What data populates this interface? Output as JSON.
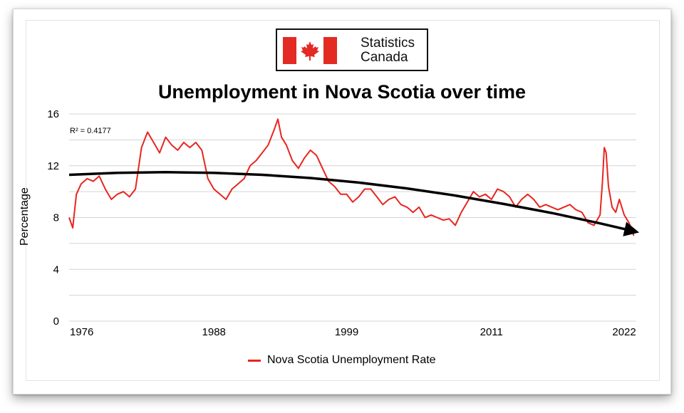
{
  "logo": {
    "line1": "Statistics",
    "line2": "Canada",
    "flag_color": "#e32b24"
  },
  "chart_data": {
    "type": "line",
    "title": "Unemployment in Nova Scotia over time",
    "xlabel": "",
    "ylabel": "Percentage",
    "xlim": [
      1976,
      2023
    ],
    "ylim": [
      0,
      16
    ],
    "y_ticks": [
      0,
      4,
      8,
      12,
      16
    ],
    "x_ticks": [
      "1976",
      "1988",
      "1999",
      "2011",
      "2022"
    ],
    "grid": true,
    "legend_position": "bottom",
    "series": [
      {
        "name": "Nova Scotia Unemployment Rate",
        "color": "#e8251e",
        "x": [
          1976.0,
          1976.3,
          1976.6,
          1977.0,
          1977.5,
          1978.0,
          1978.5,
          1979.0,
          1979.5,
          1980.0,
          1980.5,
          1981.0,
          1981.5,
          1982.0,
          1982.5,
          1983.0,
          1983.5,
          1984.0,
          1984.5,
          1985.0,
          1985.5,
          1986.0,
          1986.5,
          1987.0,
          1987.5,
          1988.0,
          1988.5,
          1989.0,
          1989.5,
          1990.0,
          1990.5,
          1991.0,
          1991.5,
          1992.0,
          1992.5,
          1993.0,
          1993.3,
          1993.6,
          1994.0,
          1994.5,
          1995.0,
          1995.5,
          1996.0,
          1996.5,
          1997.0,
          1997.5,
          1998.0,
          1998.5,
          1999.0,
          1999.5,
          2000.0,
          2000.5,
          2001.0,
          2001.5,
          2002.0,
          2002.5,
          2003.0,
          2003.5,
          2004.0,
          2004.5,
          2005.0,
          2005.5,
          2006.0,
          2006.5,
          2007.0,
          2007.5,
          2008.0,
          2008.5,
          2009.0,
          2009.5,
          2010.0,
          2010.5,
          2011.0,
          2011.5,
          2012.0,
          2012.5,
          2013.0,
          2013.5,
          2014.0,
          2014.5,
          2015.0,
          2015.5,
          2016.0,
          2016.5,
          2017.0,
          2017.5,
          2018.0,
          2018.5,
          2019.0,
          2019.5,
          2020.0,
          2020.2,
          2020.35,
          2020.5,
          2020.7,
          2021.0,
          2021.3,
          2021.6,
          2022.0,
          2022.4,
          2022.8
        ],
        "values": [
          8.0,
          7.2,
          9.8,
          10.6,
          11.0,
          10.8,
          11.2,
          10.2,
          9.4,
          9.8,
          10.0,
          9.6,
          10.2,
          13.4,
          14.6,
          13.8,
          13.0,
          14.2,
          13.6,
          13.2,
          13.8,
          13.4,
          13.8,
          13.2,
          11.0,
          10.2,
          9.8,
          9.4,
          10.2,
          10.6,
          11.0,
          12.0,
          12.4,
          13.0,
          13.6,
          14.8,
          15.6,
          14.2,
          13.6,
          12.4,
          11.8,
          12.6,
          13.2,
          12.8,
          11.8,
          10.8,
          10.4,
          9.8,
          9.8,
          9.2,
          9.6,
          10.2,
          10.2,
          9.6,
          9.0,
          9.4,
          9.6,
          9.0,
          8.8,
          8.4,
          8.8,
          8.0,
          8.2,
          8.0,
          7.8,
          7.9,
          7.4,
          8.4,
          9.2,
          10.0,
          9.6,
          9.8,
          9.4,
          10.2,
          10.0,
          9.6,
          8.8,
          9.4,
          9.8,
          9.4,
          8.8,
          9.0,
          8.8,
          8.6,
          8.8,
          9.0,
          8.6,
          8.4,
          7.6,
          7.4,
          8.2,
          10.8,
          13.4,
          13.0,
          10.4,
          8.8,
          8.4,
          9.4,
          8.2,
          7.6,
          6.6
        ]
      }
    ],
    "trendline": {
      "label": "R² = 0.4177",
      "x": [
        1976,
        1980,
        1984,
        1988,
        1992,
        1996,
        2000,
        2004,
        2008,
        2012,
        2016,
        2020,
        2023
      ],
      "values": [
        11.3,
        11.45,
        11.5,
        11.45,
        11.3,
        11.05,
        10.7,
        10.25,
        9.7,
        9.05,
        8.35,
        7.55,
        6.9
      ]
    }
  }
}
